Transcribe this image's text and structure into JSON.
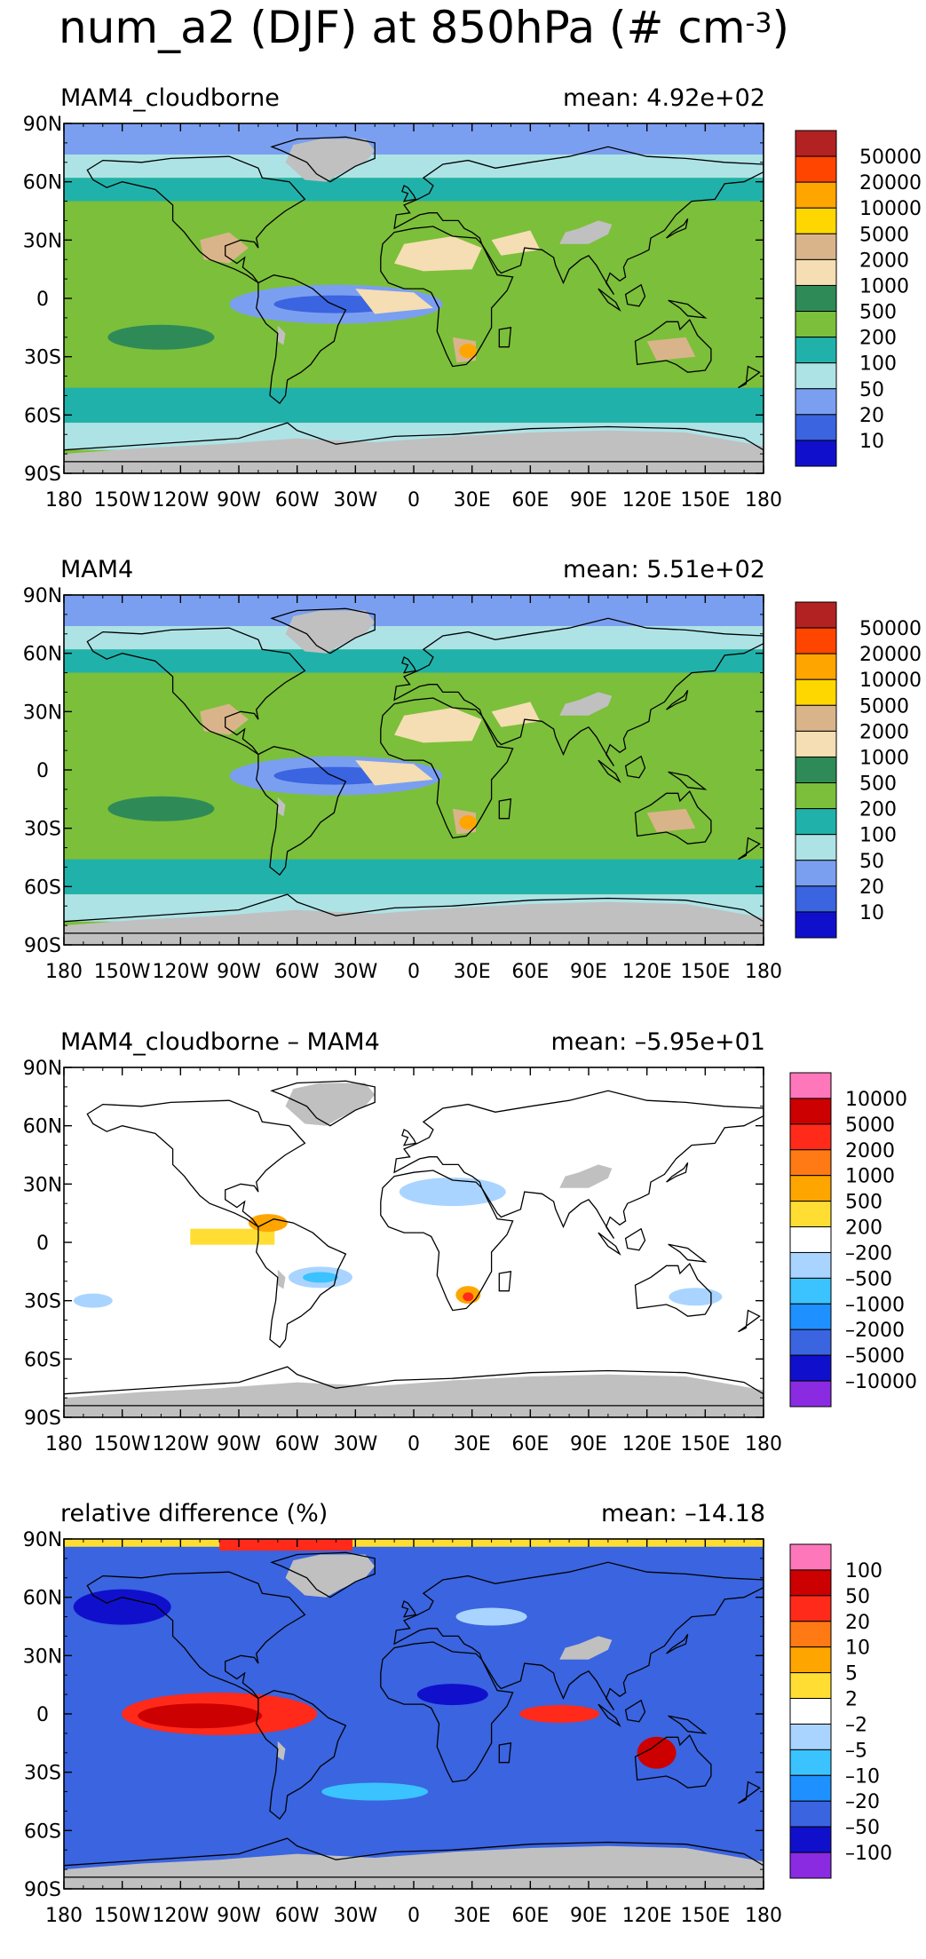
{
  "figure": {
    "title_main": "num_a2 (DJF) at 850hPa (# cm",
    "title_exp": "-3",
    "title_close": ")"
  },
  "axes": {
    "lon_ticks": [
      "180",
      "150W",
      "120W",
      "90W",
      "60W",
      "30W",
      "0",
      "30E",
      "60E",
      "90E",
      "120E",
      "150E",
      "180"
    ],
    "lat_ticks": [
      "90N",
      "60N",
      "30N",
      "0",
      "30S",
      "60S",
      "90S"
    ],
    "xlim": [
      -180,
      180
    ],
    "ylim": [
      -90,
      90
    ]
  },
  "colors": {
    "land_missing": "#c0c0c0",
    "coastline": "#000000"
  },
  "chart_data": [
    {
      "type": "heatmap",
      "subtitle": "MAM4_cloudborne",
      "mean_label": "mean:  4.92e+02",
      "colorbar_labels": [
        "50000",
        "20000",
        "10000",
        "5000",
        "2000",
        "1000",
        "500",
        "200",
        "100",
        "50",
        "20",
        "10"
      ],
      "colorbar_colors": [
        "#b22222",
        "#ff4500",
        "#ffa500",
        "#ffd700",
        "#d9b48a",
        "#f5deb3",
        "#2e8b57",
        "#7cbf3a",
        "#20b2aa",
        "#aee3e6",
        "#7b9ff0",
        "#3a64e0",
        "#1010cc"
      ]
    },
    {
      "type": "heatmap",
      "subtitle": "MAM4",
      "mean_label": "mean:  5.51e+02",
      "colorbar_labels": [
        "50000",
        "20000",
        "10000",
        "5000",
        "2000",
        "1000",
        "500",
        "200",
        "100",
        "50",
        "20",
        "10"
      ],
      "colorbar_colors": [
        "#b22222",
        "#ff4500",
        "#ffa500",
        "#ffd700",
        "#d9b48a",
        "#f5deb3",
        "#2e8b57",
        "#7cbf3a",
        "#20b2aa",
        "#aee3e6",
        "#7b9ff0",
        "#3a64e0",
        "#1010cc"
      ]
    },
    {
      "type": "heatmap",
      "subtitle": "MAM4_cloudborne – MAM4",
      "mean_label": "mean:  –5.95e+01",
      "colorbar_labels": [
        "10000",
        "5000",
        "2000",
        "1000",
        "500",
        "200",
        "–200",
        "–500",
        "–1000",
        "–2000",
        "–5000",
        "–10000"
      ],
      "colorbar_colors": [
        "#ff77bb",
        "#cc0000",
        "#ff2a1a",
        "#ff7a14",
        "#ffa500",
        "#ffdd33",
        "#ffffff",
        "#a9d4ff",
        "#3ac3ff",
        "#1e90ff",
        "#3a64e0",
        "#1010cc",
        "#8a2be2"
      ]
    },
    {
      "type": "heatmap",
      "subtitle": "relative difference (%)",
      "mean_label": "mean:  –14.18",
      "colorbar_labels": [
        "100",
        "50",
        "20",
        "10",
        "5",
        "2",
        "–2",
        "–5",
        "–10",
        "–20",
        "–50",
        "–100"
      ],
      "colorbar_colors": [
        "#ff77bb",
        "#cc0000",
        "#ff2a1a",
        "#ff7a14",
        "#ffa500",
        "#ffdd33",
        "#ffffff",
        "#a9d4ff",
        "#3ac3ff",
        "#1e90ff",
        "#3a64e0",
        "#1010cc",
        "#8a2be2"
      ]
    }
  ]
}
